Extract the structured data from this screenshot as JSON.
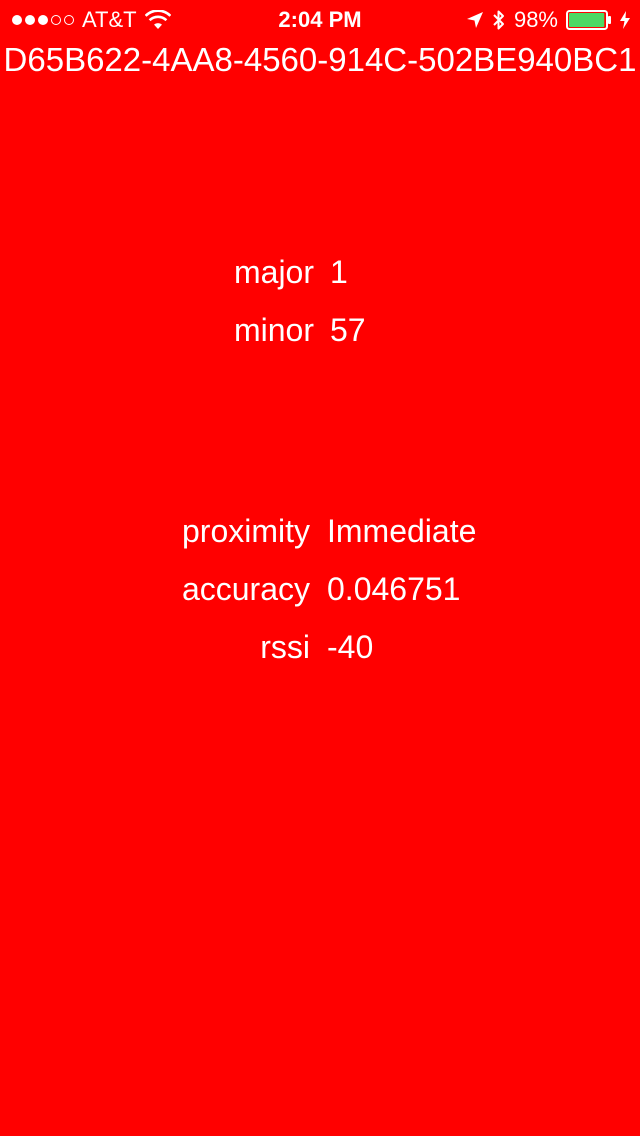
{
  "status_bar": {
    "carrier": "AT&T",
    "signal_bars_filled": 3,
    "signal_bars_total": 5,
    "time": "2:04 PM",
    "battery_percent": "98%",
    "battery_level": 0.98,
    "icons": [
      "wifi-icon",
      "location-arrow-icon",
      "bluetooth-icon",
      "battery-icon",
      "charging-bolt-icon"
    ]
  },
  "beacon": {
    "uuid": "D65B622-4AA8-4560-914C-502BE940BC1",
    "identity": {
      "major_label": "major",
      "major_value": "1",
      "minor_label": "minor",
      "minor_value": "57"
    },
    "ranging": {
      "proximity_label": "proximity",
      "proximity_value": "Immediate",
      "accuracy_label": "accuracy",
      "accuracy_value": "0.046751",
      "rssi_label": "rssi",
      "rssi_value": "-40"
    }
  },
  "colors": {
    "background": "#ff0000",
    "text": "#ffffff",
    "battery_fill": "#4cd964"
  }
}
